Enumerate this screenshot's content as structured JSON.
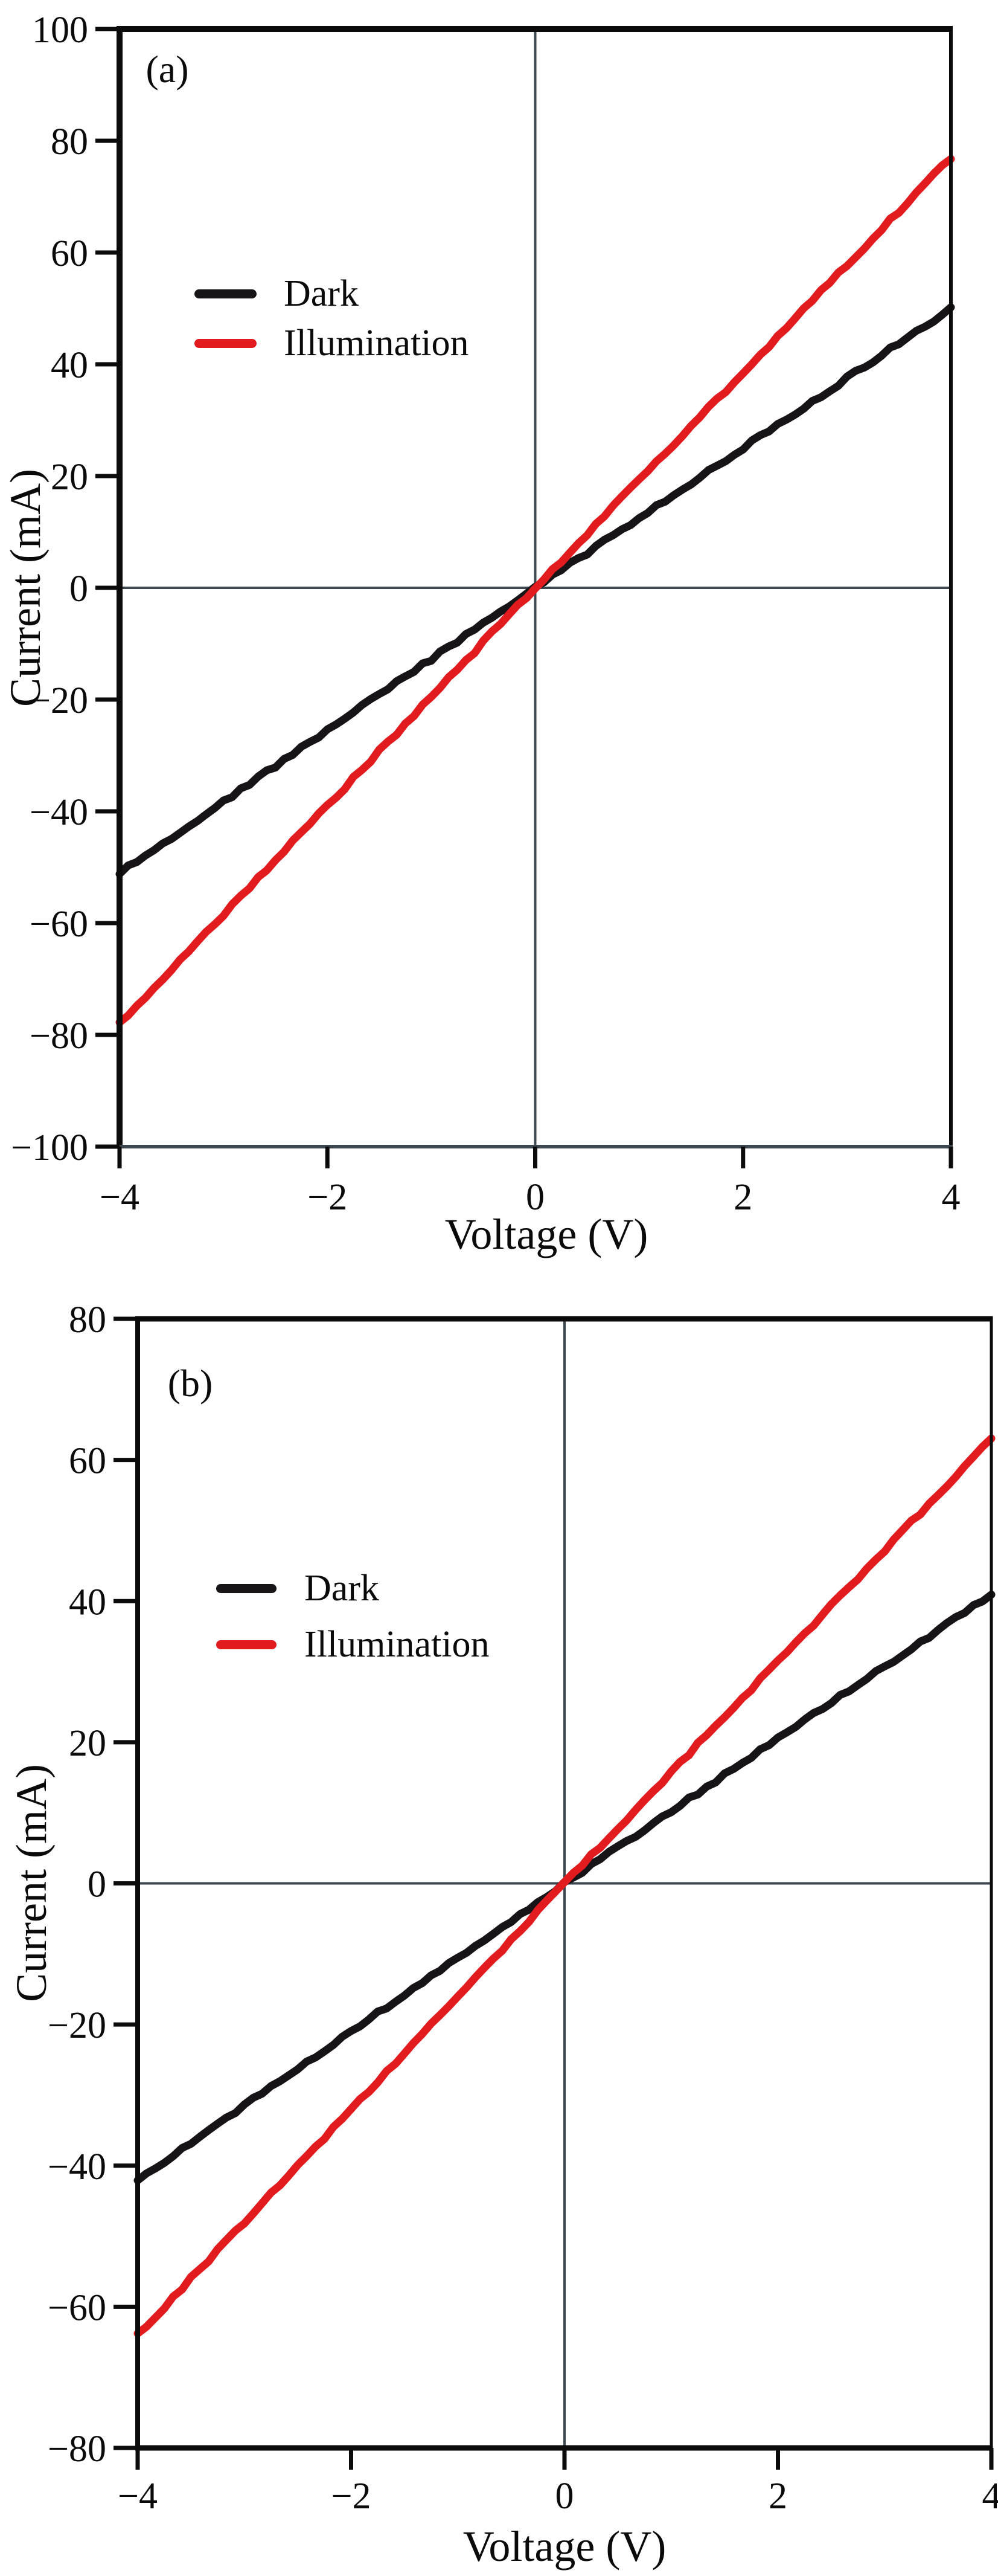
{
  "page": {
    "background": "#ffffff"
  },
  "colors": {
    "frame": "#0b0b0b",
    "zero_line": "#3c4750",
    "tick": "#0b0b0b",
    "text": "#0a0a0a",
    "dark_series": "#171317",
    "illumination_series": "#e21b1f"
  },
  "chart_data": [
    {
      "id": "a",
      "type": "line",
      "panel_label": "(a)",
      "xlabel": "Voltage (V)",
      "ylabel": "Current (mA)",
      "xlim": [
        -4,
        4
      ],
      "ylim": [
        -100,
        100
      ],
      "grid": "off (only zero-cross reference lines)",
      "legend_position": "upper-left-inside",
      "xticks": [
        {
          "v": -4,
          "label": "−4"
        },
        {
          "v": -2,
          "label": "−2"
        },
        {
          "v": 0,
          "label": "0"
        },
        {
          "v": 2,
          "label": "2"
        },
        {
          "v": 4,
          "label": "4"
        }
      ],
      "yticks": [
        {
          "v": 100,
          "label": "100"
        },
        {
          "v": 80,
          "label": "80"
        },
        {
          "v": 60,
          "label": "60"
        },
        {
          "v": 40,
          "label": "40"
        },
        {
          "v": 20,
          "label": "20"
        },
        {
          "v": 0,
          "label": "0"
        },
        {
          "v": -20,
          "label": "−20"
        },
        {
          "v": -40,
          "label": "−40"
        },
        {
          "v": -60,
          "label": "−60"
        },
        {
          "v": -80,
          "label": "−80"
        },
        {
          "v": -100,
          "label": "−100"
        }
      ],
      "legend": {
        "items": [
          {
            "label": "Dark",
            "color": "#171317"
          },
          {
            "label": "Illumination",
            "color": "#e21b1f"
          }
        ]
      },
      "series": [
        {
          "name": "Dark",
          "color": "#171317",
          "points": [
            [
              -4,
              -51
            ],
            [
              0,
              0
            ],
            [
              4,
              50
            ]
          ]
        },
        {
          "name": "Illumination",
          "color": "#e21b1f",
          "points": [
            [
              -4,
              -78
            ],
            [
              0,
              0
            ],
            [
              4,
              77
            ]
          ]
        }
      ]
    },
    {
      "id": "b",
      "type": "line",
      "panel_label": "(b)",
      "xlabel": "Voltage (V)",
      "ylabel": "Current (mA)",
      "xlim": [
        -4,
        4
      ],
      "ylim": [
        -80,
        80
      ],
      "grid": "off (only zero-cross reference lines)",
      "legend_position": "upper-left-inside",
      "xticks": [
        {
          "v": -4,
          "label": "−4"
        },
        {
          "v": -2,
          "label": "−2"
        },
        {
          "v": 0,
          "label": "0"
        },
        {
          "v": 2,
          "label": "2"
        },
        {
          "v": 4,
          "label": "4"
        }
      ],
      "yticks": [
        {
          "v": 80,
          "label": "80"
        },
        {
          "v": 60,
          "label": "60"
        },
        {
          "v": 40,
          "label": "40"
        },
        {
          "v": 20,
          "label": "20"
        },
        {
          "v": 0,
          "label": "0"
        },
        {
          "v": -20,
          "label": "−20"
        },
        {
          "v": -40,
          "label": "−40"
        },
        {
          "v": -60,
          "label": "−60"
        },
        {
          "v": -80,
          "label": "−80"
        }
      ],
      "legend": {
        "items": [
          {
            "label": "Dark",
            "color": "#171317"
          },
          {
            "label": "Illumination",
            "color": "#e21b1f"
          }
        ]
      },
      "series": [
        {
          "name": "Dark",
          "color": "#171317",
          "points": [
            [
              -4,
              -42
            ],
            [
              0,
              0
            ],
            [
              4,
              41
            ]
          ]
        },
        {
          "name": "Illumination",
          "color": "#e21b1f",
          "points": [
            [
              -4,
              -64
            ],
            [
              0,
              0
            ],
            [
              4,
              63
            ]
          ]
        }
      ]
    }
  ]
}
